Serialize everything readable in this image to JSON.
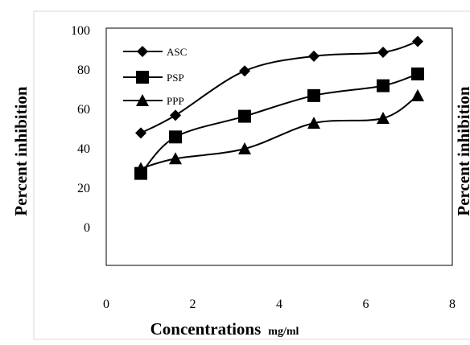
{
  "chart_data": {
    "type": "line",
    "title": "",
    "xlabel": "Concentrations",
    "xlabel_unit": "mg/ml",
    "ylabel": "Percent inhibition",
    "ylabel_right": "Percent inhibition",
    "xlim": [
      0,
      8
    ],
    "ylim": [
      0,
      100
    ],
    "xticks": [
      "0",
      "2",
      "4",
      "6",
      "8"
    ],
    "yticks": [
      "0",
      "20",
      "40",
      "60",
      "80",
      "100"
    ],
    "grid": false,
    "legend_position": "top-left",
    "smooth_lines": true,
    "series": [
      {
        "name": "ASC",
        "marker": "diamond",
        "x": [
          0.8,
          1.6,
          3.2,
          4.8,
          6.4,
          7.2
        ],
        "y": [
          48,
          57,
          79.5,
          87,
          89,
          94.5
        ]
      },
      {
        "name": "PSP",
        "marker": "square",
        "x": [
          0.8,
          1.6,
          3.2,
          4.8,
          6.4,
          7.2
        ],
        "y": [
          27.5,
          46,
          56.5,
          67,
          72,
          78
        ]
      },
      {
        "name": "PPP",
        "marker": "triangle",
        "x": [
          0.8,
          1.6,
          3.2,
          4.8,
          6.4,
          7.2
        ],
        "y": [
          30,
          35,
          40,
          53,
          55.5,
          67
        ]
      }
    ]
  },
  "colors": {
    "series": "#000000",
    "plot_border": "#000000",
    "outer_border": "#d9d9d9"
  }
}
